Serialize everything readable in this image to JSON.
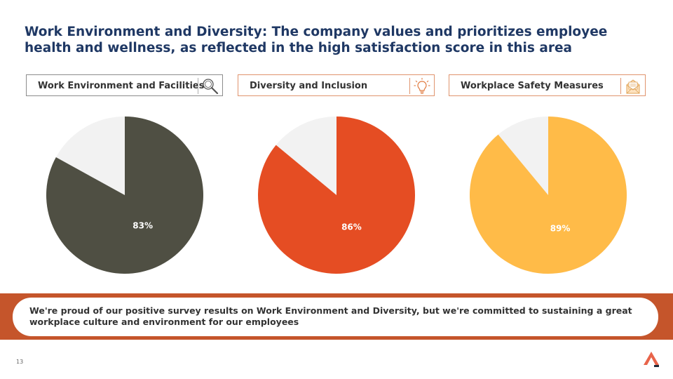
{
  "slide": {
    "title": "Work Environment and Diversity: The company values and prioritizes employee health and wellness, as reflected in the high satisfaction score in this area",
    "banner_text": "We're proud of our positive survey results on Work Environment and Diversity, but we're committed to sustaining a great workplace culture and environment for our employees",
    "page_number": "13"
  },
  "cards": [
    {
      "label": "Work Environment and Facilities",
      "icon": "magnifier-icon"
    },
    {
      "label": "Diversity and Inclusion",
      "icon": "lightbulb-icon"
    },
    {
      "label": "Workplace Safety Measures",
      "icon": "envelope-icon"
    }
  ],
  "colors": {
    "title": "#1f3864",
    "pie_background": "#f2f2f2",
    "banner": "#c5552b"
  },
  "chart_data": [
    {
      "type": "pie",
      "title": "Work Environment and Facilities",
      "values": [
        83,
        17
      ],
      "labels": [
        "83%",
        ""
      ],
      "colors": [
        "#4f4f43",
        "#f2f2f2"
      ],
      "label_color": "#ffffff"
    },
    {
      "type": "pie",
      "title": "Diversity and Inclusion",
      "values": [
        86,
        14
      ],
      "labels": [
        "86%",
        ""
      ],
      "colors": [
        "#e54d23",
        "#f2f2f2"
      ],
      "label_color": "#ffffff"
    },
    {
      "type": "pie",
      "title": "Workplace Safety Measures",
      "values": [
        89,
        11
      ],
      "labels": [
        "89%",
        ""
      ],
      "colors": [
        "#ffbb48",
        "#f2f2f2"
      ],
      "label_color": "#ffffff"
    }
  ]
}
